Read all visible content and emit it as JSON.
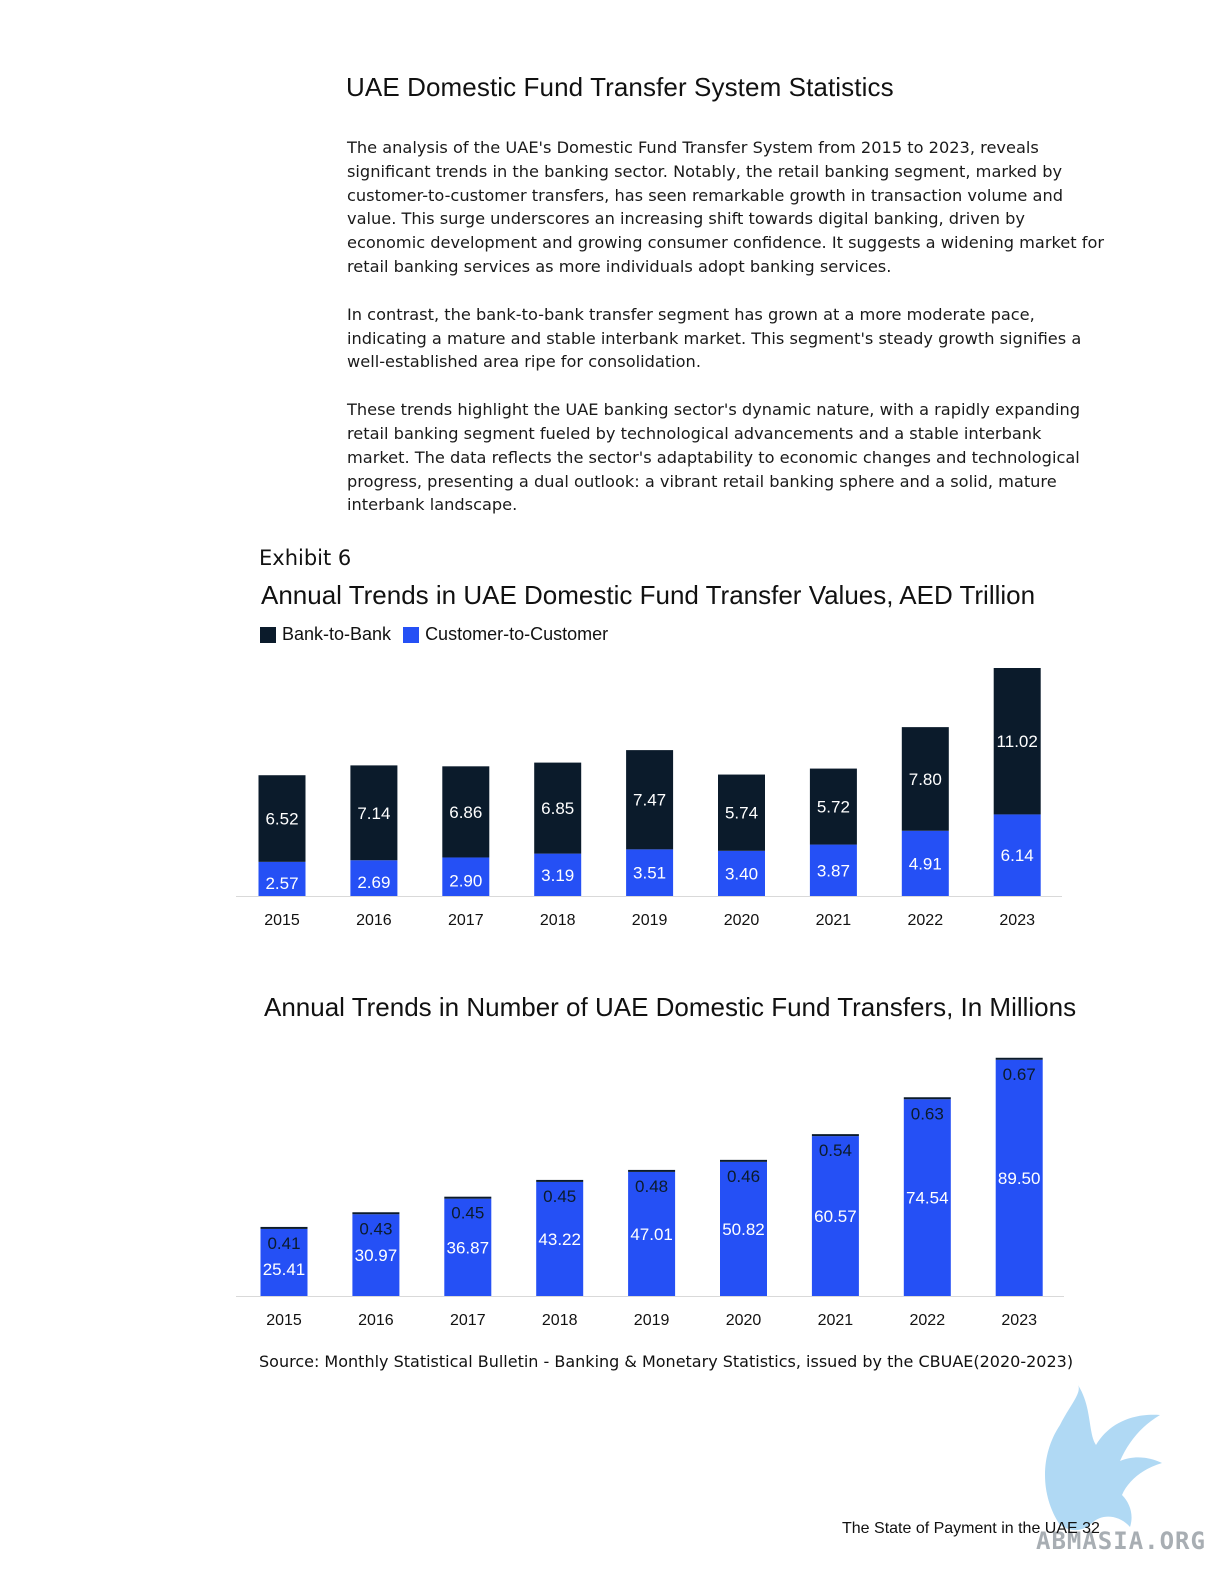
{
  "page": {
    "title": "UAE Domestic Fund Transfer System Statistics",
    "paragraphs": [
      "The analysis of the UAE's Domestic Fund Transfer System from 2015 to 2023, reveals significant trends in the banking sector. Notably, the retail banking segment, marked by customer-to-customer transfers, has seen remarkable growth in transaction volume and value. This surge underscores an increasing shift towards digital banking, driven by economic development and growing consumer confidence. It suggests a widening market for retail banking services as more individuals adopt banking services.",
      "In contrast, the bank-to-bank transfer segment has grown at a more moderate pace, indicating a mature and stable interbank market. This segment's steady growth signifies a well-established area ripe for consolidation.",
      "These trends highlight the UAE banking sector's dynamic nature, with a rapidly expanding retail banking segment fueled by technological advancements and a stable interbank market. The data reflects the sector's adaptability to economic changes and technological progress, presenting a dual outlook: a vibrant retail banking sphere and a solid, mature interbank landscape."
    ],
    "exhibit_label": "Exhibit 6",
    "source": "Source: Monthly Statistical Bulletin - Banking & Monetary Statistics, issued by the CBUAE(2020-2023)",
    "footer": "The State of Payment in the UAE  32",
    "watermark_text": "ABMASIA.ORG"
  },
  "colors": {
    "bank_to_bank": "#0b1b2b",
    "customer_to_customer": "#2550f5"
  },
  "chart_data": [
    {
      "type": "bar",
      "stacked": true,
      "title": "Annual Trends in UAE Domestic Fund Transfer Values, AED Trillion",
      "legend": "top-left",
      "categories": [
        "2015",
        "2016",
        "2017",
        "2018",
        "2019",
        "2020",
        "2021",
        "2022",
        "2023"
      ],
      "series": [
        {
          "name": "Customer-to-Customer",
          "values": [
            2.57,
            2.69,
            2.9,
            3.19,
            3.51,
            3.4,
            3.87,
            4.91,
            6.14
          ]
        },
        {
          "name": "Bank-to-Bank",
          "values": [
            6.52,
            7.14,
            6.86,
            6.85,
            7.47,
            5.74,
            5.72,
            7.8,
            11.02
          ]
        }
      ],
      "value_labels": {
        "Customer-to-Customer": [
          "2.57",
          "2.69",
          "2.90",
          "3.19",
          "3.51",
          "3.40",
          "3.87",
          "4.91",
          "6.14"
        ],
        "Bank-to-Bank": [
          "6.52",
          "7.14",
          "6.86",
          "6.85",
          "7.47",
          "5.74",
          "5.72",
          "7.80",
          "11.02"
        ]
      },
      "grid": false
    },
    {
      "type": "bar",
      "stacked": true,
      "title": "Annual Trends in Number of UAE Domestic Fund Transfers, In Millions",
      "categories": [
        "2015",
        "2016",
        "2017",
        "2018",
        "2019",
        "2020",
        "2021",
        "2022",
        "2023"
      ],
      "series": [
        {
          "name": "Customer-to-Customer",
          "values": [
            25.41,
            30.97,
            36.87,
            43.22,
            47.01,
            50.82,
            60.57,
            74.54,
            89.5
          ]
        },
        {
          "name": "Bank-to-Bank",
          "values": [
            0.41,
            0.43,
            0.45,
            0.45,
            0.48,
            0.46,
            0.54,
            0.63,
            0.67
          ]
        }
      ],
      "value_labels": {
        "Customer-to-Customer": [
          "25.41",
          "30.97",
          "36.87",
          "43.22",
          "47.01",
          "50.82",
          "60.57",
          "74.54",
          "89.50"
        ],
        "Bank-to-Bank": [
          "0.41",
          "0.43",
          "0.45",
          "0.45",
          "0.48",
          "0.46",
          "0.54",
          "0.63",
          "0.67"
        ]
      },
      "grid": false
    }
  ]
}
